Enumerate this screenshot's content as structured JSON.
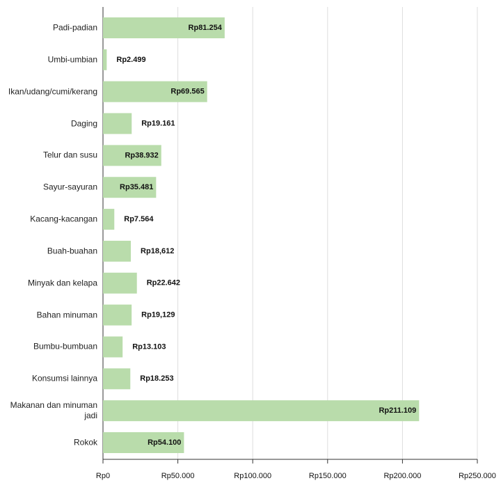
{
  "chart_data": {
    "type": "barh",
    "categories": [
      "Padi-padian",
      "Umbi-umbian",
      "Ikan/udang/cumi/kerang",
      "Daging",
      "Telur dan susu",
      "Sayur-sayuran",
      "Kacang-kacangan",
      "Buah-buahan",
      "Minyak dan kelapa",
      "Bahan minuman",
      "Bumbu-bumbuan",
      "Konsumsi lainnya",
      "Makanan dan minuman jadi",
      "Rokok"
    ],
    "values": [
      81254,
      2499,
      69565,
      19161,
      38932,
      35481,
      7564,
      18612,
      22642,
      19129,
      13103,
      18253,
      211109,
      54100
    ],
    "value_labels": [
      "Rp81.254",
      "Rp2.499",
      "Rp69.565",
      "Rp19.161",
      "Rp38.932",
      "Rp35.481",
      "Rp7.564",
      "Rp18,612",
      "Rp22.642",
      "Rp19,129",
      "Rp13.103",
      "Rp18.253",
      "Rp211.109",
      "Rp54.100"
    ],
    "color": "#b9dcab",
    "xlim": [
      0,
      250000
    ],
    "xticks": [
      {
        "value": 0,
        "label": "Rp0"
      },
      {
        "value": 50000,
        "label": "Rp50.000"
      },
      {
        "value": 100000,
        "label": "Rp100.000"
      },
      {
        "value": 150000,
        "label": "Rp150.000"
      },
      {
        "value": 200000,
        "label": "Rp200.000"
      },
      {
        "value": 250000,
        "label": "Rp250.000"
      }
    ],
    "grid": true
  }
}
